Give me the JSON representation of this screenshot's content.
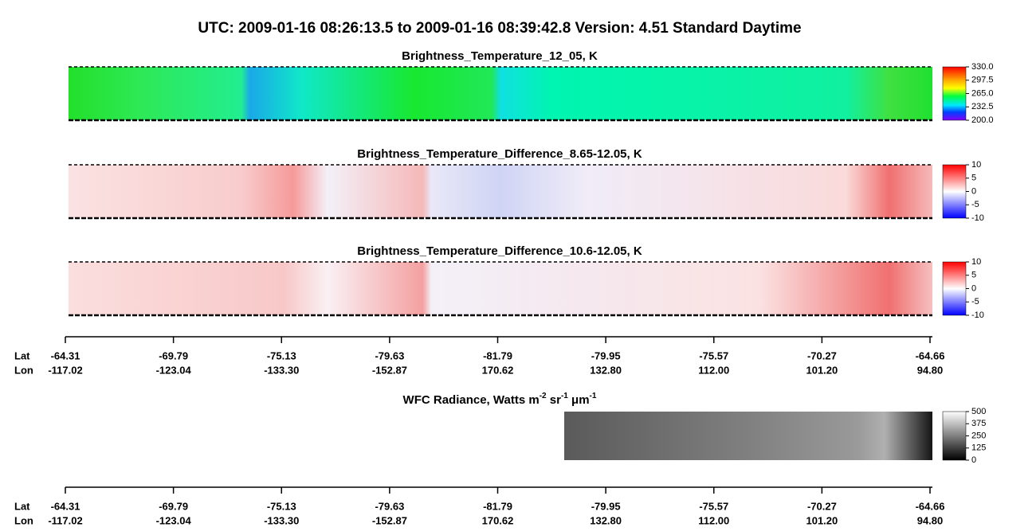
{
  "title": "UTC:  2009-01-16   08:26:13.5  to  2009-01-16   08:39:42.8    Version: 4.51  Standard Daytime",
  "panels": [
    {
      "title": "Brightness_Temperature_12_05, K",
      "colorbar_labels": [
        "330.0",
        "297.5",
        "265.0",
        "232.5",
        "200.0"
      ]
    },
    {
      "title": "Brightness_Temperature_Difference_8.65-12.05, K",
      "colorbar_labels": [
        "10",
        "5",
        "0",
        "-5",
        "-10"
      ]
    },
    {
      "title": "Brightness_Temperature_Difference_10.6-12.05, K",
      "colorbar_labels": [
        "10",
        "5",
        "0",
        "-5",
        "-10"
      ]
    }
  ],
  "wfc": {
    "title_parts": [
      "WFC Radiance, Watts m",
      "-2",
      " sr",
      "-1",
      " μm",
      "-1"
    ],
    "colorbar_labels": [
      "500",
      "375",
      "250",
      "125",
      "0"
    ]
  },
  "axes": [
    {
      "row_labels": [
        "Lat",
        "Lon"
      ],
      "lat": [
        "-64.31",
        "-69.79",
        "-75.13",
        "-79.63",
        "-81.79",
        "-79.95",
        "-75.57",
        "-70.27",
        "-64.66"
      ],
      "lon": [
        "-117.02",
        "-123.04",
        "-133.30",
        "-152.87",
        "170.62",
        "132.80",
        "112.00",
        "101.20",
        "94.80"
      ]
    },
    {
      "row_labels": [
        "Lat",
        "Lon"
      ],
      "lat": [
        "-64.31",
        "-69.79",
        "-75.13",
        "-79.63",
        "-81.79",
        "-79.95",
        "-75.57",
        "-70.27",
        "-64.66"
      ],
      "lon": [
        "-117.02",
        "-123.04",
        "-133.30",
        "-152.87",
        "170.62",
        "132.80",
        "112.00",
        "101.20",
        "94.80"
      ]
    }
  ]
}
